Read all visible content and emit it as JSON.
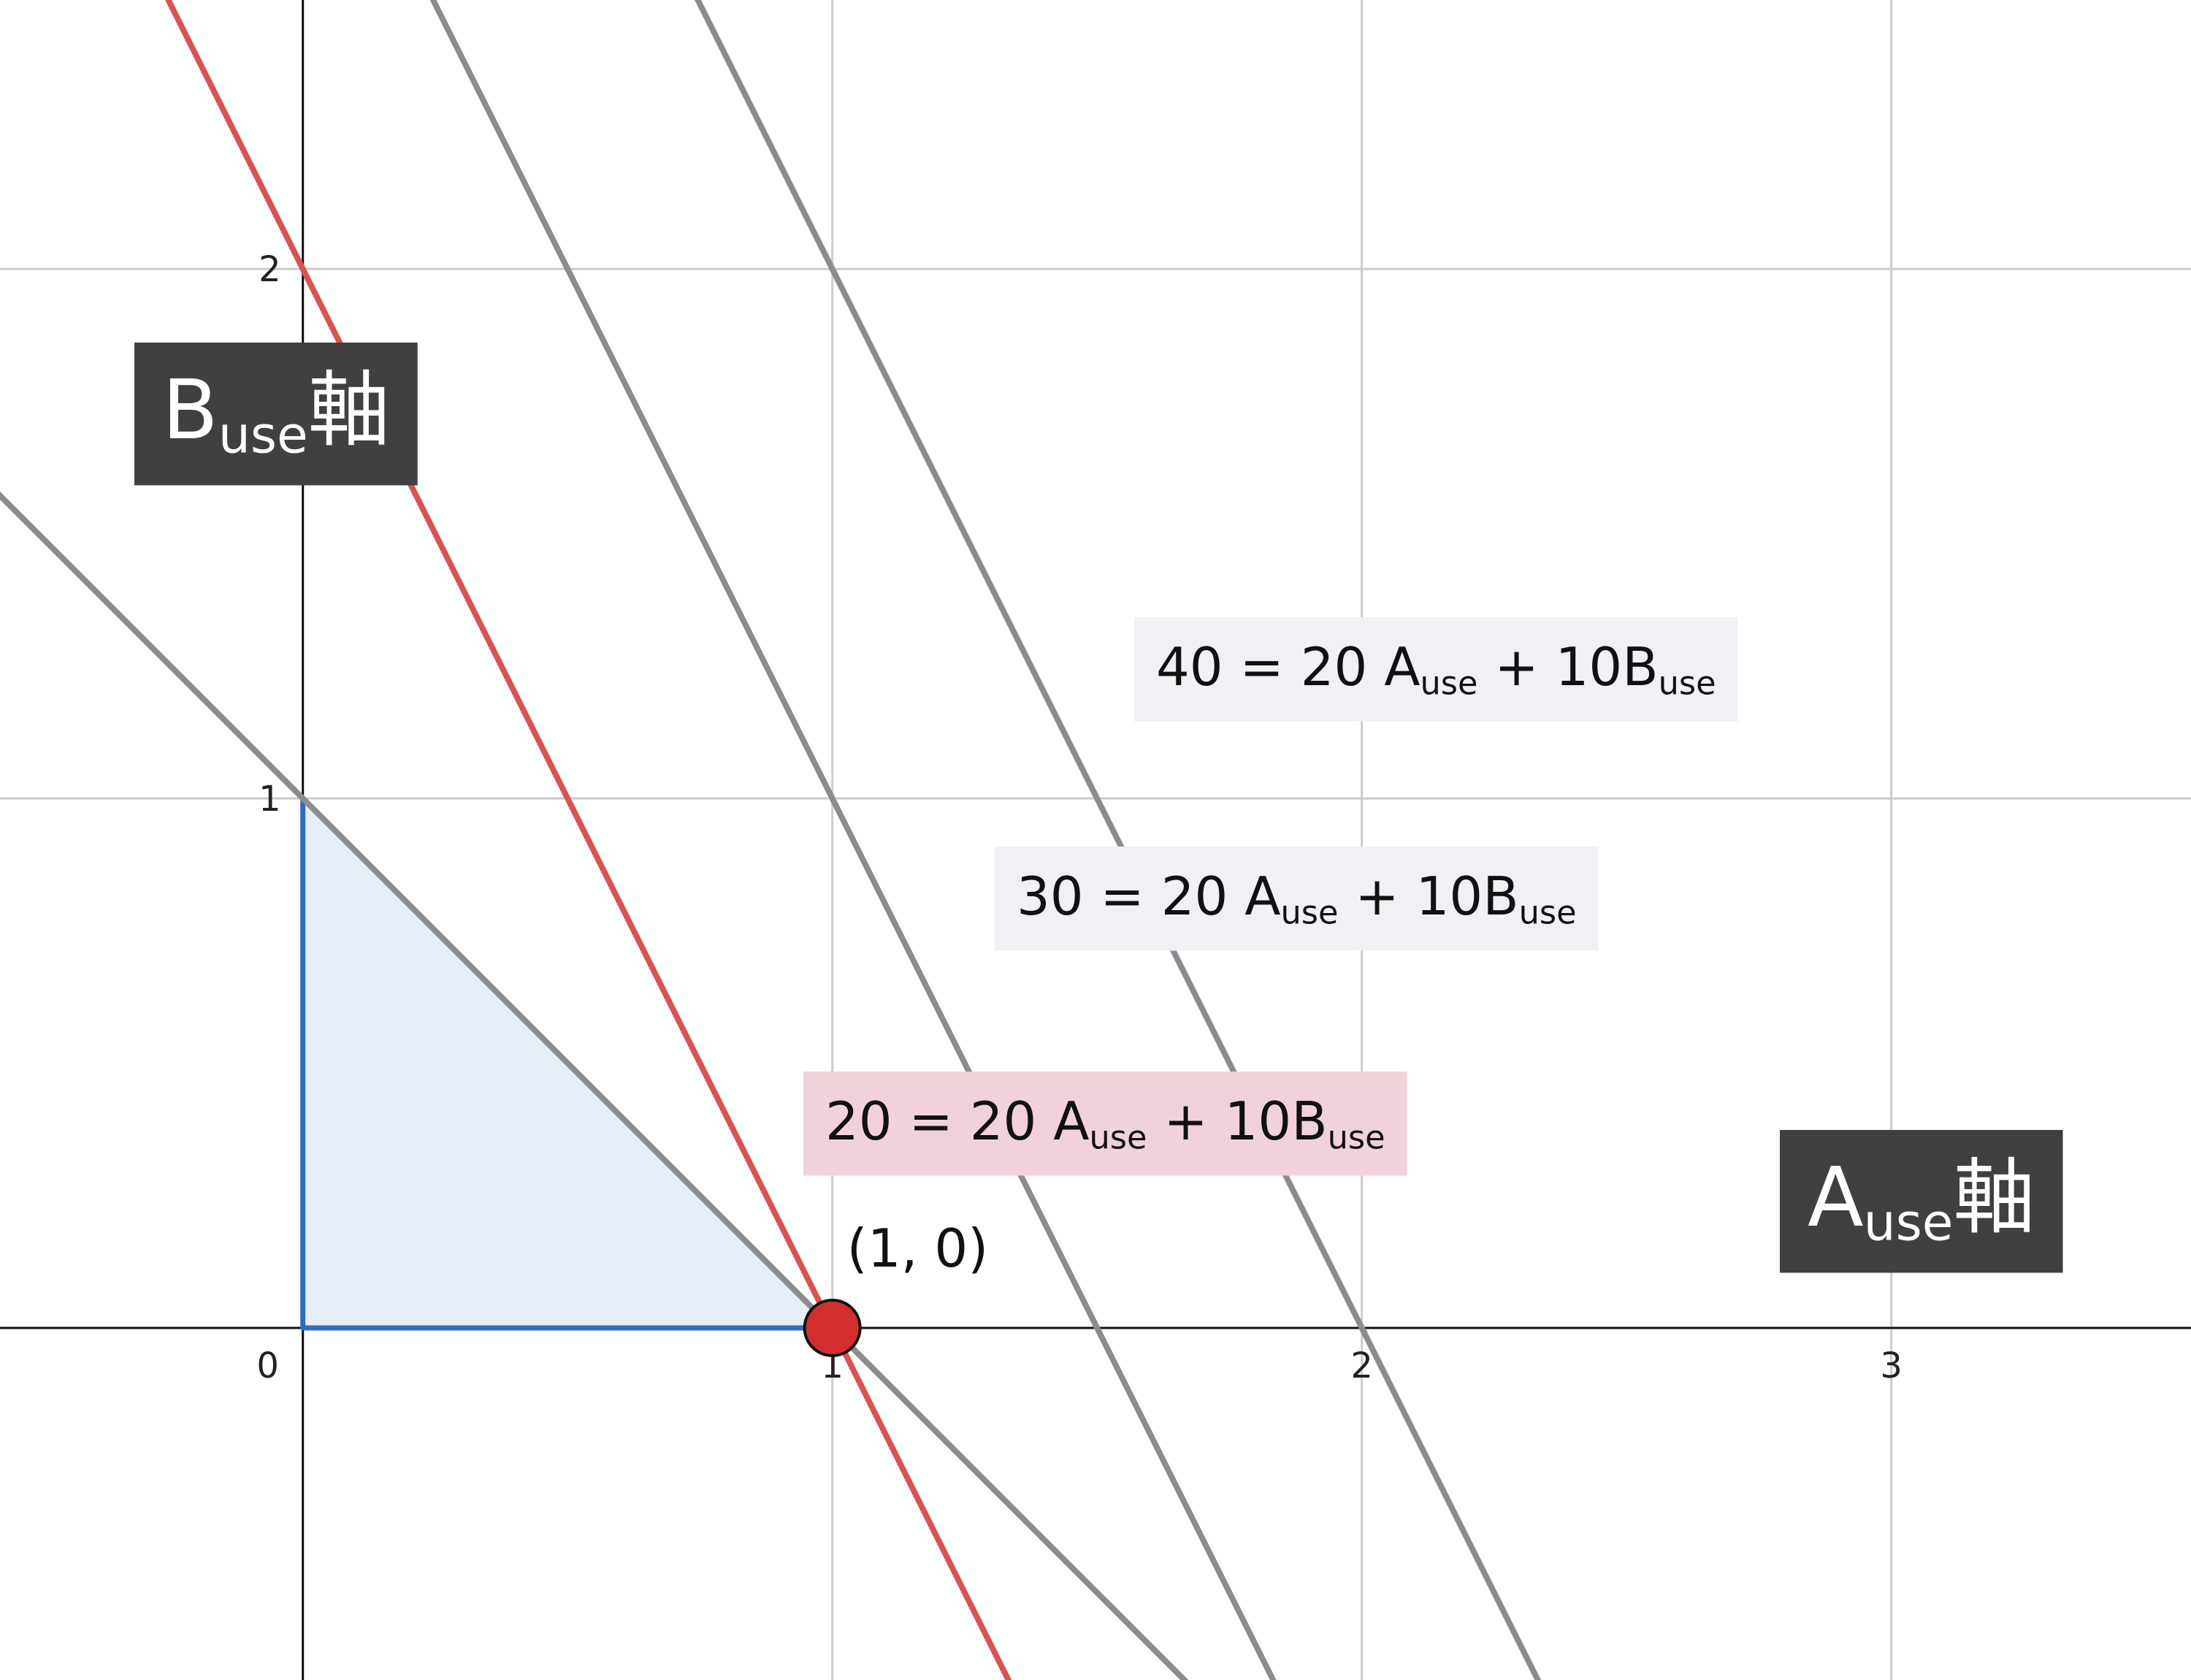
{
  "chart_data": {
    "type": "line",
    "xlim": [
      -0.572,
      3.566
    ],
    "ylim": [
      -0.665,
      2.508
    ],
    "xticks": [
      0,
      1,
      2,
      3
    ],
    "yticks": [
      1,
      2
    ],
    "grid": true,
    "axis_labels": {
      "x": [
        "A",
        "use",
        "軸"
      ],
      "y": [
        "B",
        "use",
        "軸"
      ]
    },
    "series": [
      {
        "label": [
          "20 = 20 A",
          "use",
          " + 10B",
          "use"
        ],
        "color": "#d9534f",
        "label_background": "#f2d2da",
        "x": [
          -0.3,
          1.35
        ],
        "values": [
          2.6,
          -0.7
        ]
      },
      {
        "label": [
          "30 = 20 A",
          "use",
          " + 10B",
          "use"
        ],
        "color": "#8c8c8e",
        "label_background": "#f0f0f5",
        "x": [
          0.2,
          1.85
        ],
        "values": [
          2.6,
          -0.7
        ]
      },
      {
        "label": [
          "40 = 20 A",
          "use",
          " + 10B",
          "use"
        ],
        "color": "#8c8c8e",
        "label_background": "#f0f0f5",
        "x": [
          0.7,
          2.35
        ],
        "values": [
          2.6,
          -0.7
        ]
      },
      {
        "color": "#8c8c8e",
        "x": [
          -0.6,
          1.7
        ],
        "values": [
          1.6,
          -0.7
        ]
      }
    ],
    "region": {
      "x": [
        0,
        1,
        0
      ],
      "y": [
        0,
        0,
        1
      ],
      "color": "#2d6cc0",
      "fill": "#e6eef8"
    },
    "point": {
      "x": 1,
      "y": 0,
      "label": "(1, 0)",
      "color": "#d32f2f"
    }
  }
}
